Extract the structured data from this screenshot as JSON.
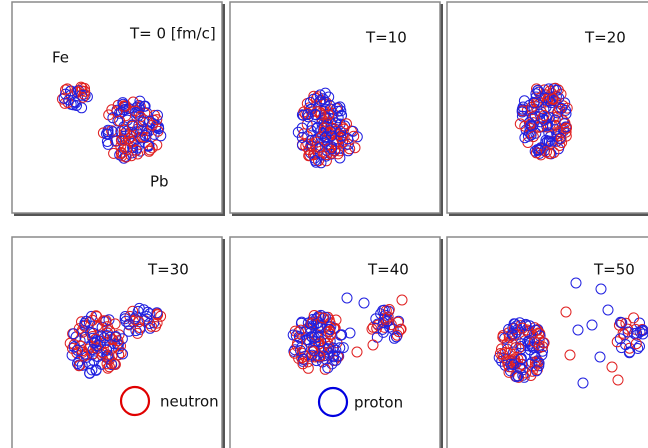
{
  "panels": [
    {
      "label": "T= 0 [fm/c]"
    },
    {
      "label": "T=10"
    },
    {
      "label": "T=20"
    },
    {
      "label": "T=30"
    },
    {
      "label": "T=40"
    },
    {
      "label": "T=50"
    }
  ],
  "annotations": {
    "projectile": "Fe",
    "target": "Pb"
  },
  "legend": {
    "neutron": "neutron",
    "proton": "proton"
  }
}
